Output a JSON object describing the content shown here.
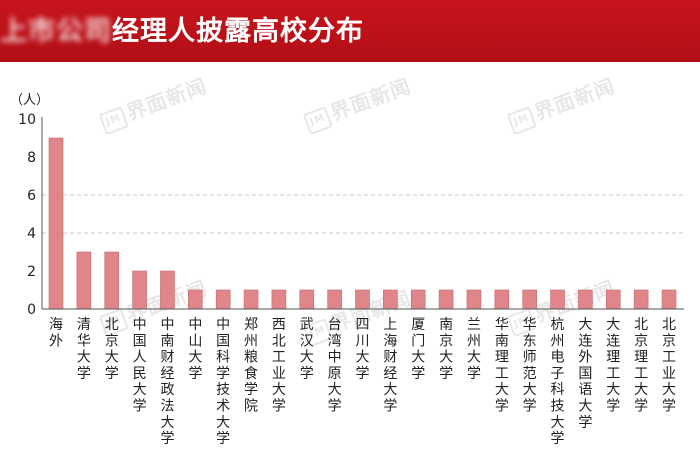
{
  "title": {
    "hidden_part": "上市公司",
    "visible_part": "经理人披露高校分布"
  },
  "watermark": {
    "text": "界面新闻",
    "badge": "JM"
  },
  "colors": {
    "header_bg": "#c8141c",
    "bar_fill": "#e0868a",
    "bar_stroke": "#c46a6f",
    "grid_dashed": "#c9c9c9",
    "axis": "#555555",
    "text": "#222222"
  },
  "chart_data": {
    "type": "bar",
    "unit_label": "（人）",
    "categories": [
      "海外",
      "清华大学",
      "北京大学",
      "中国人民大学",
      "中南财经政法大学",
      "中山大学",
      "中国科学技术大学",
      "郑州粮食学院",
      "西北工业大学",
      "武汉大学",
      "台湾中原大学",
      "四川大学",
      "上海财经大学",
      "厦门大学",
      "南京大学",
      "兰州大学",
      "华南理工大学",
      "华东师范大学",
      "杭州电子科技大学",
      "大连外国语大学",
      "大连理工大学",
      "北京理工大学",
      "北京工业大学"
    ],
    "values": [
      9,
      3,
      3,
      2,
      2,
      1,
      1,
      1,
      1,
      1,
      1,
      1,
      1,
      1,
      1,
      1,
      1,
      1,
      1,
      1,
      1,
      1,
      1
    ],
    "ylim": [
      0,
      10
    ],
    "yticks": [
      0,
      2,
      4,
      6,
      8,
      10
    ],
    "dashed_grid_at": [
      4,
      6
    ],
    "legend": "none"
  }
}
